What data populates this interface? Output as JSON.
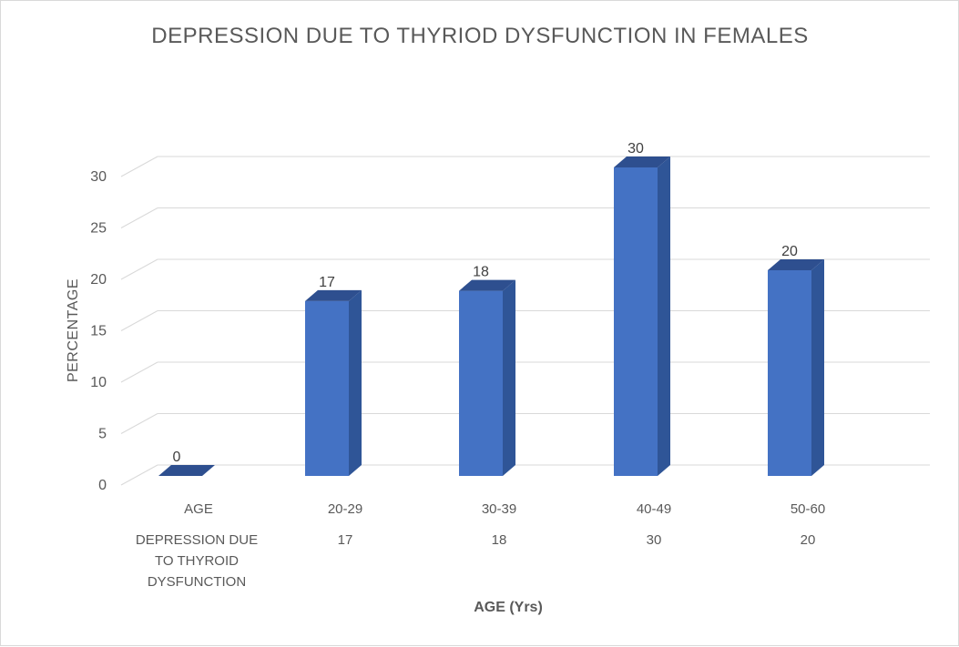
{
  "chart_data": {
    "type": "bar",
    "title": "DEPRESSION DUE TO THYRIOD DYSFUNCTION IN FEMALES",
    "xlabel": "AGE (Yrs)",
    "ylabel": "PERCENTAGE",
    "categories": [
      "AGE",
      "20-29",
      "30-39",
      "40-49",
      "50-60"
    ],
    "series": [
      {
        "name": "DEPRESSION DUE TO THYROID DYSFUNCTION",
        "values": [
          0,
          17,
          18,
          30,
          20
        ],
        "color": "#4472c4"
      }
    ],
    "data_labels": [
      "0",
      "17",
      "18",
      "30",
      "20"
    ],
    "table_row": {
      "label_lines": [
        "DEPRESSION DUE",
        "TO THYROID",
        "DYSFUNCTION"
      ],
      "values": [
        "17",
        "18",
        "30",
        "20"
      ]
    },
    "ylim": [
      0,
      30
    ],
    "yticks": [
      "0",
      "5",
      "10",
      "15",
      "20",
      "25",
      "30"
    ],
    "grid": true,
    "colors": {
      "bar_front": "#4472c4",
      "bar_side": "#2f5597",
      "bar_top": "#2e4f8f",
      "grid": "#d9d9d9",
      "text": "#595959"
    }
  }
}
